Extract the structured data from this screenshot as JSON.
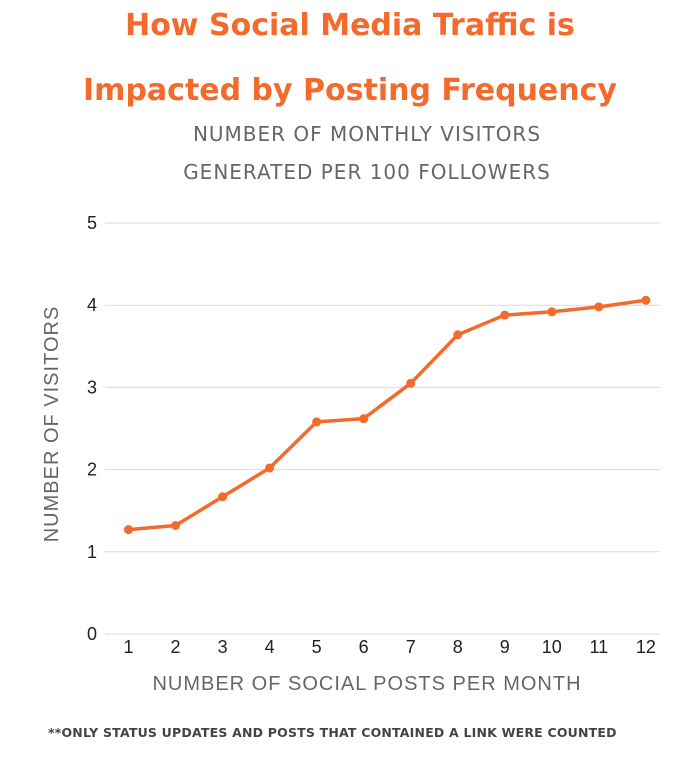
{
  "title_line1": "How Social Media Traffic is",
  "title_line2": "Impacted by Posting Frequency",
  "subtitle_line1": "NUMBER OF MONTHLY VISITORS",
  "subtitle_line2": "GENERATED PER 100 FOLLOWERS",
  "footnote": "**ONLY STATUS UPDATES AND POSTS THAT CONTAINED A LINK WERE COUNTED",
  "colors": {
    "accent": "#f26a2c",
    "axis_text": "#666666",
    "grid": "#d9d9d9"
  },
  "chart_data": {
    "type": "line",
    "x": [
      1,
      2,
      3,
      4,
      5,
      6,
      7,
      8,
      9,
      10,
      11,
      12
    ],
    "series": [
      {
        "values": [
          1.27,
          1.32,
          1.67,
          2.02,
          2.58,
          2.62,
          3.05,
          3.64,
          3.88,
          3.92,
          3.98,
          4.06
        ]
      }
    ],
    "xlabel": "NUMBER OF SOCIAL POSTS PER MONTH",
    "ylabel": "NUMBER OF VISITORS",
    "ylim": [
      0,
      5
    ],
    "yticks": [
      0,
      1,
      2,
      3,
      4,
      5
    ],
    "grid": true,
    "markers": true
  }
}
